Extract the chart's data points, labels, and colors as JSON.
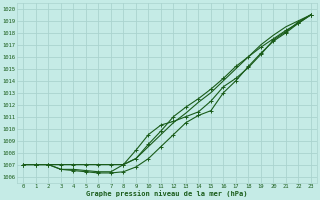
{
  "title": "Graphe pression niveau de la mer (hPa)",
  "bg_color": "#c5ebe6",
  "grid_color": "#aad4cf",
  "line_color": "#1a5c1a",
  "xlim": [
    -0.5,
    23.5
  ],
  "ylim": [
    1005.5,
    1020.5
  ],
  "yticks": [
    1006,
    1007,
    1008,
    1009,
    1010,
    1011,
    1012,
    1013,
    1014,
    1015,
    1016,
    1017,
    1018,
    1019,
    1020
  ],
  "xticks": [
    0,
    1,
    2,
    3,
    4,
    5,
    6,
    7,
    8,
    9,
    10,
    11,
    12,
    13,
    14,
    15,
    16,
    17,
    18,
    19,
    20,
    21,
    22,
    23
  ],
  "series": [
    {
      "y": [
        1007.0,
        1007.0,
        1007.0,
        1007.0,
        1007.0,
        1007.0,
        1007.0,
        1007.0,
        1007.0,
        1007.5,
        1008.5,
        1009.5,
        1010.5,
        1011.3,
        1012.2,
        1013.0,
        1014.0,
        1015.0,
        1016.0,
        1017.0,
        1017.8,
        1018.5,
        1019.0,
        1019.5
      ],
      "marker": false,
      "lw": 0.8
    },
    {
      "y": [
        1007.0,
        1007.0,
        1007.0,
        1007.0,
        1007.0,
        1007.0,
        1007.0,
        1007.0,
        1007.0,
        1007.5,
        1008.7,
        1009.8,
        1011.0,
        1011.8,
        1012.5,
        1013.3,
        1014.2,
        1015.2,
        1016.0,
        1016.8,
        1017.5,
        1018.2,
        1018.8,
        1019.5
      ],
      "marker": true,
      "lw": 0.8
    },
    {
      "y": [
        1007.0,
        1007.0,
        1007.0,
        1006.6,
        1006.5,
        1006.4,
        1006.3,
        1006.3,
        1006.4,
        1006.8,
        1007.5,
        1008.5,
        1009.5,
        1010.5,
        1011.1,
        1011.5,
        1013.0,
        1014.0,
        1015.2,
        1016.3,
        1017.3,
        1018.0,
        1018.8,
        1019.5
      ],
      "marker": true,
      "lw": 0.8
    },
    {
      "y": [
        1007.0,
        1007.0,
        1007.0,
        1006.6,
        1006.6,
        1006.5,
        1006.4,
        1006.4,
        1007.0,
        1008.2,
        1009.5,
        1010.3,
        1010.6,
        1011.0,
        1011.4,
        1012.3,
        1013.5,
        1014.2,
        1015.1,
        1016.2,
        1017.4,
        1018.1,
        1018.9,
        1019.5
      ],
      "marker": true,
      "lw": 0.8
    }
  ]
}
